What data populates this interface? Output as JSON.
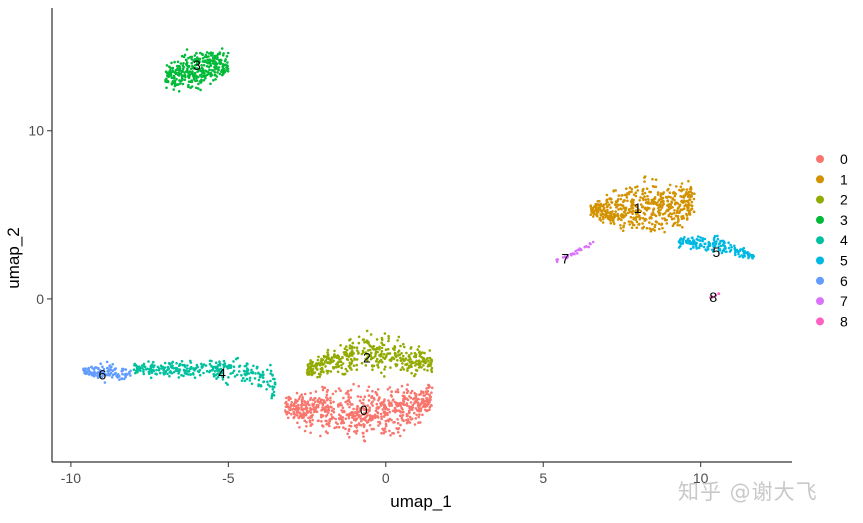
{
  "chart_data": {
    "type": "scatter",
    "title": "",
    "xlabel": "umap_1",
    "ylabel": "umap_2",
    "xlim": [
      -10.6,
      12.9
    ],
    "ylim": [
      -9.7,
      17.3
    ],
    "xticks": [
      -10,
      -5,
      0,
      5,
      10
    ],
    "yticks": [
      0,
      10
    ],
    "grid": false,
    "legend_position": "right",
    "legend": [
      "0",
      "1",
      "2",
      "3",
      "4",
      "5",
      "6",
      "7",
      "8"
    ],
    "colors": [
      "#F8766D",
      "#D39200",
      "#93AA00",
      "#00BA38",
      "#00C19F",
      "#00B9E3",
      "#619CFF",
      "#DB72FB",
      "#FF61C3"
    ],
    "clusters": [
      {
        "name": "0",
        "label_pos": [
          -0.7,
          -6.6
        ],
        "n_points": 700,
        "region": {
          "x": [
            -3.2,
            1.5
          ],
          "y_lower": [
            [
              -3.2,
              -7.2
            ],
            [
              -2.5,
              -8.4
            ],
            [
              -1.0,
              -8.8
            ],
            [
              0.5,
              -8.5
            ],
            [
              1.5,
              -7.2
            ]
          ],
          "y_upper": [
            [
              -3.2,
              -5.5
            ],
            [
              -2.0,
              -4.8
            ],
            [
              0.0,
              -4.8
            ],
            [
              1.5,
              -4.6
            ]
          ]
        }
      },
      {
        "name": "1",
        "label_pos": [
          8.0,
          5.4
        ],
        "n_points": 560,
        "region": {
          "x": [
            6.5,
            9.8
          ],
          "y_lower": [
            [
              6.5,
              4.8
            ],
            [
              7.5,
              3.4
            ],
            [
              8.5,
              3.0
            ],
            [
              9.8,
              4.0
            ]
          ],
          "y_upper": [
            [
              6.5,
              5.8
            ],
            [
              7.5,
              7.2
            ],
            [
              8.5,
              7.7
            ],
            [
              9.8,
              7.6
            ]
          ]
        }
      },
      {
        "name": "2",
        "label_pos": [
          -0.6,
          -3.5
        ],
        "n_points": 430,
        "region": {
          "x": [
            -2.5,
            1.5
          ],
          "y_lower": [
            [
              -2.5,
              -4.9
            ],
            [
              0.0,
              -4.8
            ],
            [
              1.5,
              -4.7
            ]
          ],
          "y_upper": [
            [
              -2.5,
              -3.5
            ],
            [
              -1.5,
              -2.4
            ],
            [
              -0.5,
              -1.5
            ],
            [
              0.5,
              -2.0
            ],
            [
              1.5,
              -3.0
            ]
          ]
        }
      },
      {
        "name": "3",
        "label_pos": [
          -6.0,
          13.9
        ],
        "n_points": 330,
        "region": {
          "x": [
            -7.0,
            -5.0
          ],
          "y_lower": [
            [
              -7.0,
              12.2
            ],
            [
              -6.0,
              11.9
            ],
            [
              -5.0,
              13.0
            ]
          ],
          "y_upper": [
            [
              -7.0,
              14.0
            ],
            [
              -6.0,
              15.5
            ],
            [
              -5.0,
              15.0
            ]
          ]
        }
      },
      {
        "name": "4",
        "label_pos": [
          -5.2,
          -4.4
        ],
        "n_points": 300,
        "region": {
          "x": [
            -8.0,
            -3.5
          ],
          "y_lower": [
            [
              -8.0,
              -4.8
            ],
            [
              -6.0,
              -4.9
            ],
            [
              -4.0,
              -5.6
            ],
            [
              -3.5,
              -6.5
            ]
          ],
          "y_upper": [
            [
              -8.0,
              -3.5
            ],
            [
              -6.0,
              -3.5
            ],
            [
              -4.5,
              -3.0
            ],
            [
              -3.5,
              -3.8
            ]
          ]
        }
      },
      {
        "name": "5",
        "label_pos": [
          10.5,
          2.8
        ],
        "n_points": 170,
        "region": {
          "x": [
            9.3,
            11.7
          ],
          "y_lower": [
            [
              9.3,
              2.9
            ],
            [
              10.5,
              2.4
            ],
            [
              11.7,
              2.3
            ]
          ],
          "y_upper": [
            [
              9.3,
              3.8
            ],
            [
              10.5,
              4.1
            ],
            [
              11.7,
              2.7
            ]
          ]
        }
      },
      {
        "name": "6",
        "label_pos": [
          -9.0,
          -4.5
        ],
        "n_points": 120,
        "region": {
          "x": [
            -9.6,
            -8.1
          ],
          "y_lower": [
            [
              -9.6,
              -4.6
            ],
            [
              -8.8,
              -5.2
            ],
            [
              -8.1,
              -4.8
            ]
          ],
          "y_upper": [
            [
              -9.6,
              -4.0
            ],
            [
              -8.8,
              -3.6
            ],
            [
              -8.1,
              -4.0
            ]
          ]
        }
      },
      {
        "name": "7",
        "label_pos": [
          5.7,
          2.4
        ],
        "n_points": 30,
        "region": {
          "x": [
            5.4,
            6.6
          ],
          "y_lower": [
            [
              5.4,
              2.0
            ],
            [
              6.6,
              3.1
            ]
          ],
          "y_upper": [
            [
              5.4,
              2.4
            ],
            [
              6.6,
              3.5
            ]
          ]
        }
      },
      {
        "name": "8",
        "label_pos": [
          10.4,
          0.1
        ],
        "n_points": 6,
        "region": {
          "x": [
            10.3,
            10.6
          ],
          "y_lower": [
            [
              10.3,
              0.0
            ],
            [
              10.6,
              0.2
            ]
          ],
          "y_upper": [
            [
              10.3,
              0.2
            ],
            [
              10.6,
              0.4
            ]
          ]
        }
      }
    ]
  },
  "watermark": "知乎 @谢大飞"
}
